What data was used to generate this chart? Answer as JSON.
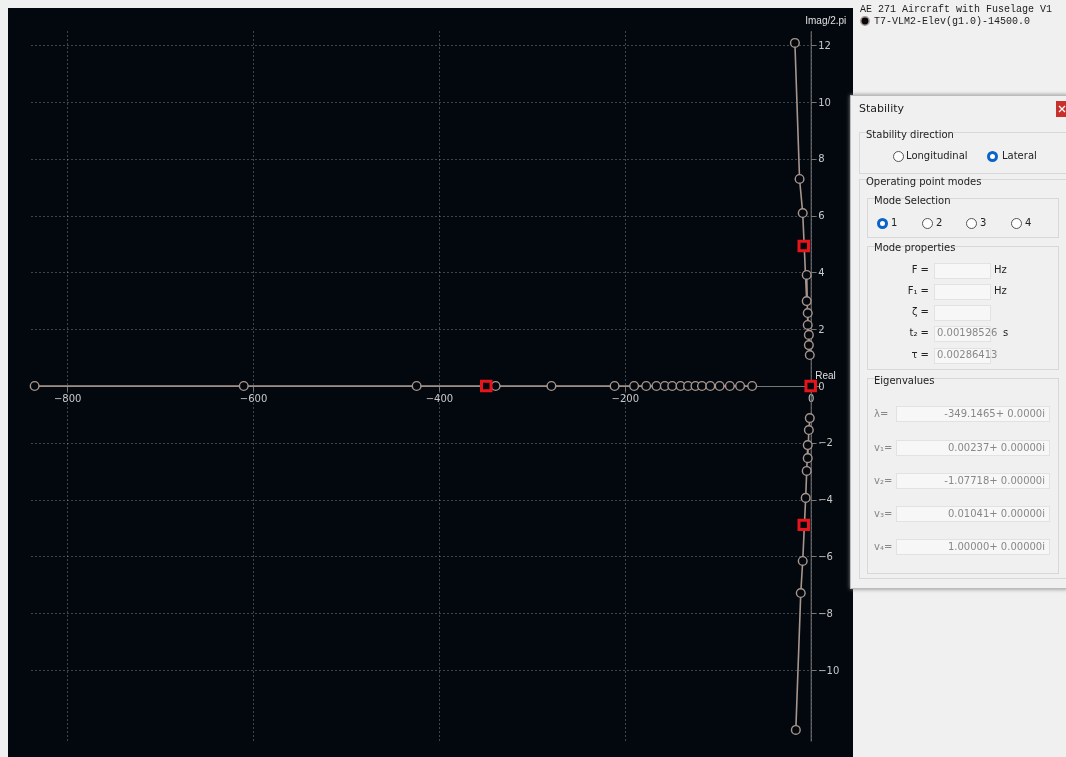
{
  "chart_data": {
    "type": "line",
    "xlabel": "Real",
    "ylabel": "Imag/2.pi",
    "legend_title": "AE 271 Aircraft with Fuselage V1",
    "xlim": [
      -840,
      10
    ],
    "ylim": [
      -12.5,
      12.5
    ],
    "xticks": [
      -800,
      -600,
      -400,
      -200,
      0
    ],
    "yticks": [
      -10,
      -8,
      -6,
      -4,
      -2,
      0,
      2,
      4,
      6,
      8,
      10,
      12
    ],
    "grid": true,
    "legend": "top right",
    "marker": "circle",
    "series": [
      {
        "name": "T7-VLM2-Elev(g1.0)-14500.0",
        "color": "#a8968d",
        "x": [
          -835,
          -610,
          -424,
          -339,
          -279,
          -211,
          -190,
          -177,
          -166,
          -157,
          -149,
          -140,
          -132,
          -124,
          -117,
          -108,
          -98,
          -87,
          -76,
          -63,
          null,
          -1,
          -2,
          -2,
          -3.2,
          -3.2,
          -4.3,
          -4.3,
          -8.6,
          -12,
          -17,
          null,
          -1,
          -2,
          -3.2,
          -3.2,
          -4.3,
          -5.4,
          -8.6,
          -10.7,
          -16
        ],
        "values": [
          0,
          0,
          0,
          0,
          0,
          0,
          0,
          0,
          0,
          0,
          0,
          0,
          0,
          0,
          0,
          0,
          0,
          0,
          0,
          0,
          null,
          1.09,
          1.44,
          1.8,
          2.15,
          2.57,
          2.99,
          3.91,
          6.09,
          7.29,
          12.08,
          null,
          -1.13,
          -1.55,
          -2.08,
          -2.54,
          -2.99,
          -3.94,
          -6.16,
          -7.29,
          -12.11
        ]
      },
      {
        "type": "scatter",
        "color": "#e8141b",
        "marker": "square",
        "x": [
          -349.1,
          0,
          -7.5,
          -7.5
        ],
        "values": [
          0,
          0,
          4.93,
          -4.89
        ]
      }
    ],
    "annotations": [
      "Stability",
      "Stability direction",
      "Longitudinal",
      "Lateral",
      "Operating point modes",
      "Mode Selection",
      "1",
      "2",
      "3",
      "4",
      "Mode properties",
      "F =",
      "Hz",
      "F₁ =",
      "Hz",
      "ζ =",
      "t₂ =",
      "0.00198526",
      "s",
      "τ =",
      "0.00286413",
      "Eigenvalues",
      "λ=",
      "-349.1465+ 0.0000i",
      "v₁=",
      "0.00237+ 0.00000i",
      "v₂=",
      "-1.07718+ 0.00000i",
      "v₃=",
      "0.01041+ 0.00000i",
      "v₄=",
      "1.00000+ 0.00000i"
    ]
  }
}
